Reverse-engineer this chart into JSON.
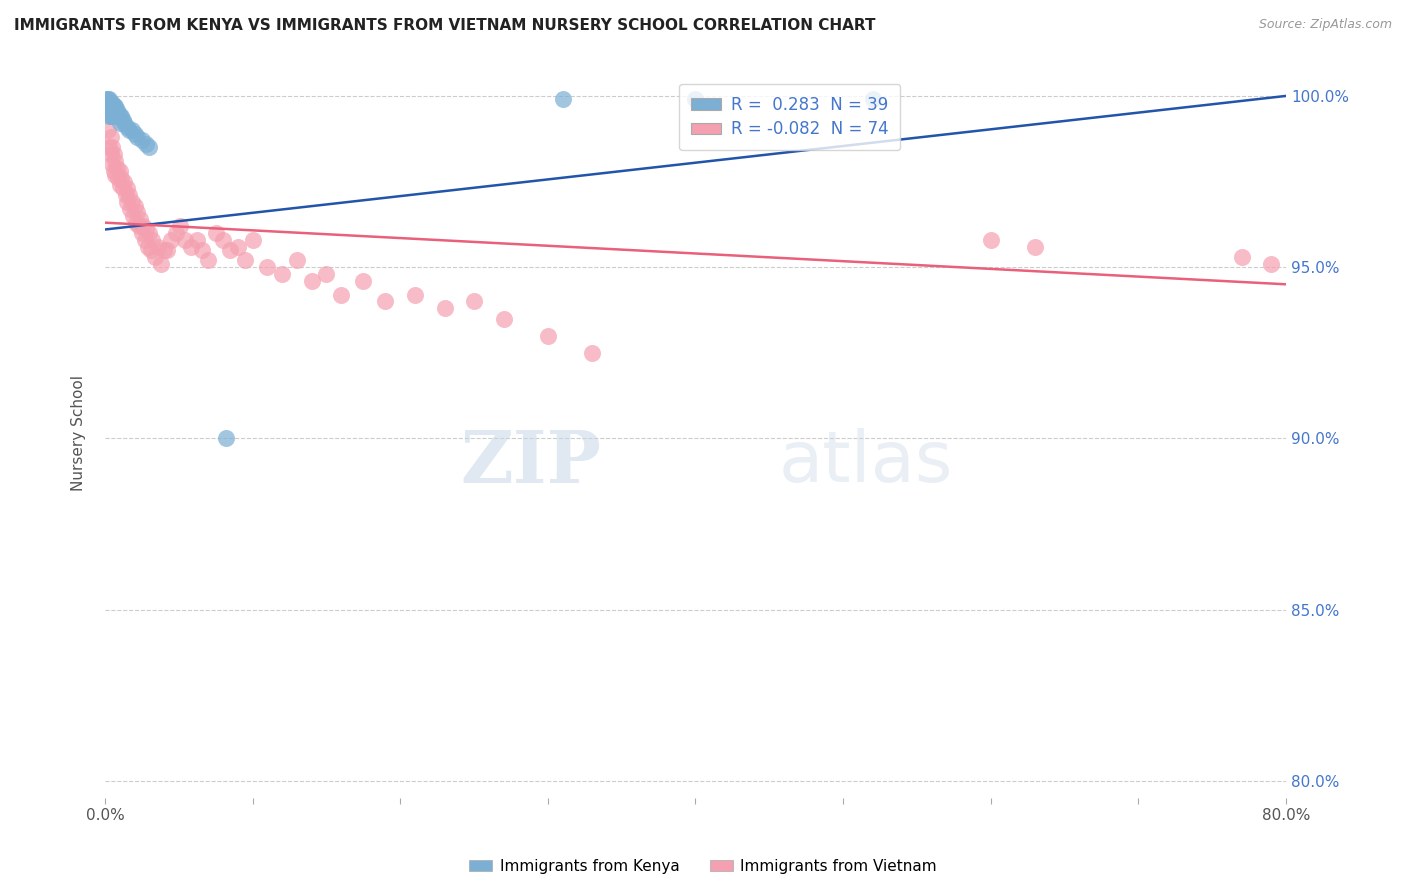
{
  "title": "IMMIGRANTS FROM KENYA VS IMMIGRANTS FROM VIETNAM NURSERY SCHOOL CORRELATION CHART",
  "source": "Source: ZipAtlas.com",
  "ylabel_label": "Nursery School",
  "ytick_labels": [
    "80.0%",
    "85.0%",
    "90.0%",
    "95.0%",
    "100.0%"
  ],
  "ytick_values": [
    0.8,
    0.85,
    0.9,
    0.95,
    1.0
  ],
  "xlim": [
    0.0,
    0.8
  ],
  "ylim": [
    0.795,
    1.008
  ],
  "legend_kenya_R": "0.283",
  "legend_kenya_N": "39",
  "legend_vietnam_R": "-0.082",
  "legend_vietnam_N": "74",
  "kenya_color": "#7BAFD4",
  "vietnam_color": "#F4A0B0",
  "kenya_line_color": "#2255AA",
  "vietnam_line_color": "#E8607A",
  "kenya_points_x": [
    0.001,
    0.001,
    0.002,
    0.002,
    0.002,
    0.003,
    0.003,
    0.003,
    0.003,
    0.004,
    0.004,
    0.004,
    0.005,
    0.005,
    0.005,
    0.006,
    0.006,
    0.007,
    0.007,
    0.008,
    0.008,
    0.009,
    0.01,
    0.01,
    0.011,
    0.012,
    0.013,
    0.015,
    0.016,
    0.018,
    0.02,
    0.022,
    0.025,
    0.028,
    0.03,
    0.082,
    0.31,
    0.4,
    0.52
  ],
  "kenya_points_y": [
    0.999,
    0.997,
    0.999,
    0.998,
    0.996,
    0.999,
    0.997,
    0.996,
    0.994,
    0.998,
    0.996,
    0.994,
    0.998,
    0.996,
    0.994,
    0.997,
    0.995,
    0.997,
    0.994,
    0.996,
    0.994,
    0.995,
    0.994,
    0.992,
    0.994,
    0.993,
    0.992,
    0.991,
    0.99,
    0.99,
    0.989,
    0.988,
    0.987,
    0.986,
    0.985,
    0.9,
    0.999,
    0.999,
    0.999
  ],
  "vietnam_points_x": [
    0.002,
    0.003,
    0.004,
    0.004,
    0.005,
    0.005,
    0.006,
    0.006,
    0.007,
    0.007,
    0.008,
    0.009,
    0.01,
    0.01,
    0.011,
    0.012,
    0.013,
    0.014,
    0.015,
    0.015,
    0.016,
    0.017,
    0.018,
    0.019,
    0.02,
    0.021,
    0.022,
    0.023,
    0.024,
    0.025,
    0.026,
    0.027,
    0.028,
    0.029,
    0.03,
    0.031,
    0.032,
    0.034,
    0.036,
    0.038,
    0.04,
    0.042,
    0.045,
    0.048,
    0.051,
    0.054,
    0.058,
    0.062,
    0.066,
    0.07,
    0.075,
    0.08,
    0.085,
    0.09,
    0.095,
    0.1,
    0.11,
    0.12,
    0.13,
    0.14,
    0.15,
    0.16,
    0.175,
    0.19,
    0.21,
    0.23,
    0.25,
    0.27,
    0.3,
    0.33,
    0.6,
    0.63,
    0.77,
    0.79
  ],
  "vietnam_points_y": [
    0.99,
    0.985,
    0.988,
    0.983,
    0.985,
    0.98,
    0.983,
    0.978,
    0.981,
    0.977,
    0.979,
    0.976,
    0.978,
    0.974,
    0.976,
    0.973,
    0.975,
    0.971,
    0.973,
    0.969,
    0.971,
    0.967,
    0.969,
    0.965,
    0.968,
    0.963,
    0.966,
    0.962,
    0.964,
    0.96,
    0.962,
    0.958,
    0.961,
    0.956,
    0.96,
    0.955,
    0.958,
    0.953,
    0.956,
    0.951,
    0.955,
    0.955,
    0.958,
    0.96,
    0.962,
    0.958,
    0.956,
    0.958,
    0.955,
    0.952,
    0.96,
    0.958,
    0.955,
    0.956,
    0.952,
    0.958,
    0.95,
    0.948,
    0.952,
    0.946,
    0.948,
    0.942,
    0.946,
    0.94,
    0.942,
    0.938,
    0.94,
    0.935,
    0.93,
    0.925,
    0.958,
    0.956,
    0.953,
    0.951
  ],
  "kenya_trend_x": [
    0.0,
    0.8
  ],
  "kenya_trend_y": [
    0.961,
    1.0
  ],
  "vietnam_trend_x": [
    0.0,
    0.8
  ],
  "vietnam_trend_y": [
    0.963,
    0.945
  ],
  "xtick_positions": [
    0.0,
    0.1,
    0.2,
    0.3,
    0.4,
    0.5,
    0.6,
    0.7,
    0.8
  ],
  "watermark_text": "ZIPatlas"
}
